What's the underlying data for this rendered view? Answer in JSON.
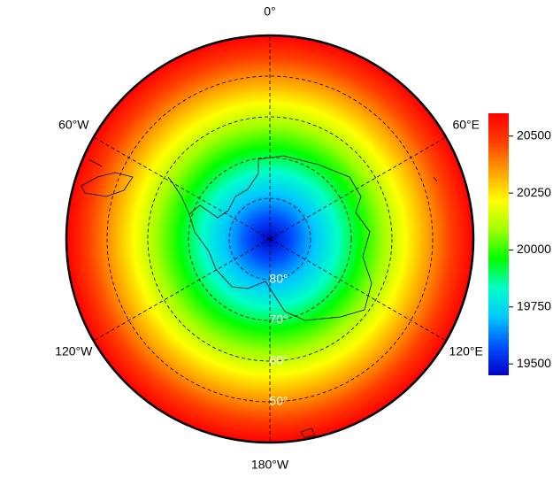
{
  "map": {
    "type": "polar-stereographic",
    "lat_lim": [
      90,
      40
    ],
    "longitude_ticks": [
      {
        "value": 0,
        "label": "0°"
      },
      {
        "value": 60,
        "label": "60°E"
      },
      {
        "value": 120,
        "label": "120°E"
      },
      {
        "value": 180,
        "label": "180°W"
      },
      {
        "value": -120,
        "label": "120°W"
      },
      {
        "value": -60,
        "label": "60°W"
      }
    ],
    "latitude_ticks": [
      {
        "value": 80,
        "label": "80°"
      },
      {
        "value": 70,
        "label": "70°"
      },
      {
        "value": 60,
        "label": "60°"
      },
      {
        "value": 50,
        "label": "50°"
      }
    ]
  },
  "colorbar": {
    "lim": [
      19450,
      20600
    ],
    "ticks": [
      19500,
      19750,
      20000,
      20250,
      20500
    ],
    "colormap": [
      "#0000c8",
      "#0050ff",
      "#00c8ff",
      "#00ffc8",
      "#00ff00",
      "#a0ff00",
      "#ffff00",
      "#ffa000",
      "#ff4000",
      "#ff0000"
    ]
  }
}
